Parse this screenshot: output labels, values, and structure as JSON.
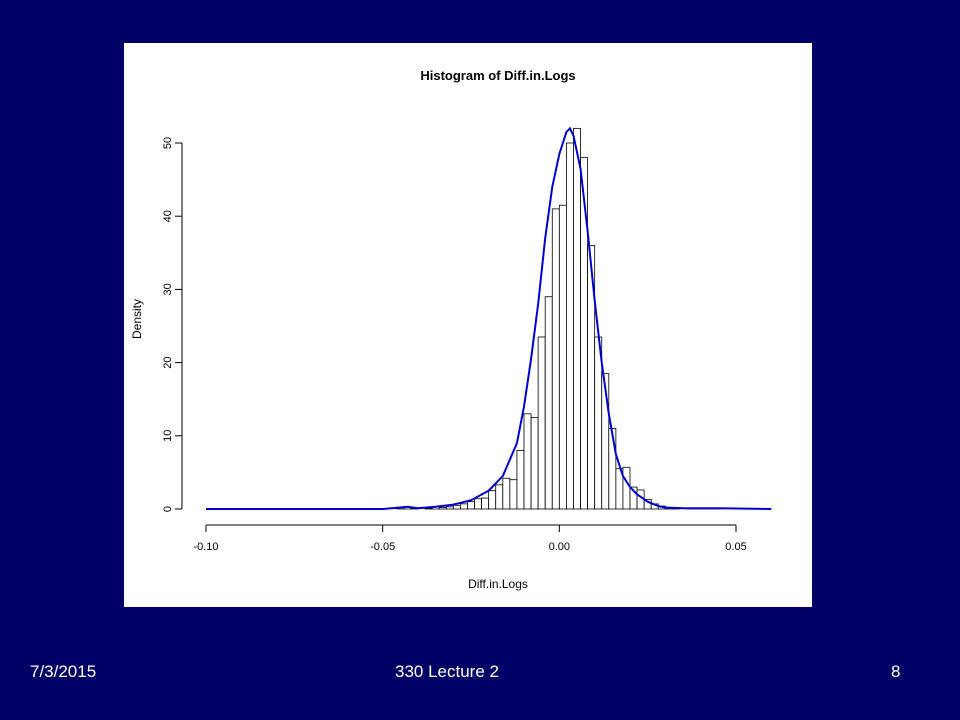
{
  "slide": {
    "footer_date": "7/3/2015",
    "footer_title": "330 Lecture 2",
    "page_number": "8",
    "background_color": "#000066"
  },
  "chart_data": {
    "type": "histogram",
    "title": "Histogram of Diff.in.Logs",
    "xlabel": "Diff.in.Logs",
    "ylabel": "Density",
    "xlim": [
      -0.1,
      0.06
    ],
    "ylim": [
      0,
      52
    ],
    "x_ticks": [
      -0.1,
      -0.05,
      0.0,
      0.05
    ],
    "x_tick_labels": [
      "-0.10",
      "-0.05",
      "0.00",
      "0.05"
    ],
    "y_ticks": [
      0,
      10,
      20,
      30,
      40,
      50
    ],
    "y_tick_labels": [
      "0",
      "10",
      "20",
      "30",
      "40",
      "50"
    ],
    "bin_width": 0.002,
    "bins": [
      {
        "start": -0.046,
        "density": 0.2
      },
      {
        "start": -0.044,
        "density": 0.3
      },
      {
        "start": -0.042,
        "density": 0.1
      },
      {
        "start": -0.038,
        "density": 0.1
      },
      {
        "start": -0.036,
        "density": 0.3
      },
      {
        "start": -0.034,
        "density": 0.2
      },
      {
        "start": -0.032,
        "density": 0.3
      },
      {
        "start": -0.03,
        "density": 0.5
      },
      {
        "start": -0.028,
        "density": 0.7
      },
      {
        "start": -0.026,
        "density": 1.0
      },
      {
        "start": -0.024,
        "density": 1.4
      },
      {
        "start": -0.022,
        "density": 1.5
      },
      {
        "start": -0.02,
        "density": 2.5
      },
      {
        "start": -0.018,
        "density": 3.3
      },
      {
        "start": -0.016,
        "density": 4.2
      },
      {
        "start": -0.014,
        "density": 4.0
      },
      {
        "start": -0.012,
        "density": 8.0
      },
      {
        "start": -0.01,
        "density": 13.0
      },
      {
        "start": -0.008,
        "density": 12.5
      },
      {
        "start": -0.006,
        "density": 23.5
      },
      {
        "start": -0.004,
        "density": 29.0
      },
      {
        "start": -0.002,
        "density": 41.0
      },
      {
        "start": 0.0,
        "density": 41.5
      },
      {
        "start": 0.002,
        "density": 50.0
      },
      {
        "start": 0.004,
        "density": 52.0
      },
      {
        "start": 0.006,
        "density": 48.0
      },
      {
        "start": 0.008,
        "density": 36.0
      },
      {
        "start": 0.01,
        "density": 23.5
      },
      {
        "start": 0.012,
        "density": 18.5
      },
      {
        "start": 0.014,
        "density": 11.0
      },
      {
        "start": 0.016,
        "density": 5.5
      },
      {
        "start": 0.018,
        "density": 5.7
      },
      {
        "start": 0.02,
        "density": 3.0
      },
      {
        "start": 0.022,
        "density": 2.6
      },
      {
        "start": 0.024,
        "density": 1.3
      },
      {
        "start": 0.026,
        "density": 0.7
      },
      {
        "start": 0.028,
        "density": 0.4
      },
      {
        "start": 0.03,
        "density": 0.2
      },
      {
        "start": 0.032,
        "density": 0.1
      },
      {
        "start": 0.036,
        "density": 0.1
      },
      {
        "start": 0.038,
        "density": 0.1
      },
      {
        "start": 0.04,
        "density": 0.1
      },
      {
        "start": 0.042,
        "density": 0.1
      },
      {
        "start": 0.044,
        "density": 0.1
      }
    ],
    "density_curve": {
      "color": "#0000cc",
      "x": [
        -0.1,
        -0.05,
        -0.045,
        -0.043,
        -0.04,
        -0.035,
        -0.03,
        -0.025,
        -0.02,
        -0.016,
        -0.012,
        -0.01,
        -0.008,
        -0.006,
        -0.004,
        -0.002,
        0.0,
        0.002,
        0.003,
        0.004,
        0.006,
        0.008,
        0.01,
        0.012,
        0.014,
        0.016,
        0.018,
        0.02,
        0.022,
        0.025,
        0.028,
        0.03,
        0.035,
        0.04,
        0.045,
        0.06
      ],
      "y": [
        0,
        0,
        0.2,
        0.3,
        0.1,
        0.3,
        0.6,
        1.2,
        2.5,
        4.5,
        9.0,
        14.0,
        20.5,
        28.0,
        37.0,
        44.0,
        48.5,
        51.5,
        52.0,
        51.0,
        46.5,
        38.0,
        28.5,
        20.0,
        13.0,
        7.5,
        4.5,
        3.0,
        2.0,
        1.0,
        0.4,
        0.2,
        0.1,
        0.1,
        0.1,
        0
      ]
    }
  }
}
